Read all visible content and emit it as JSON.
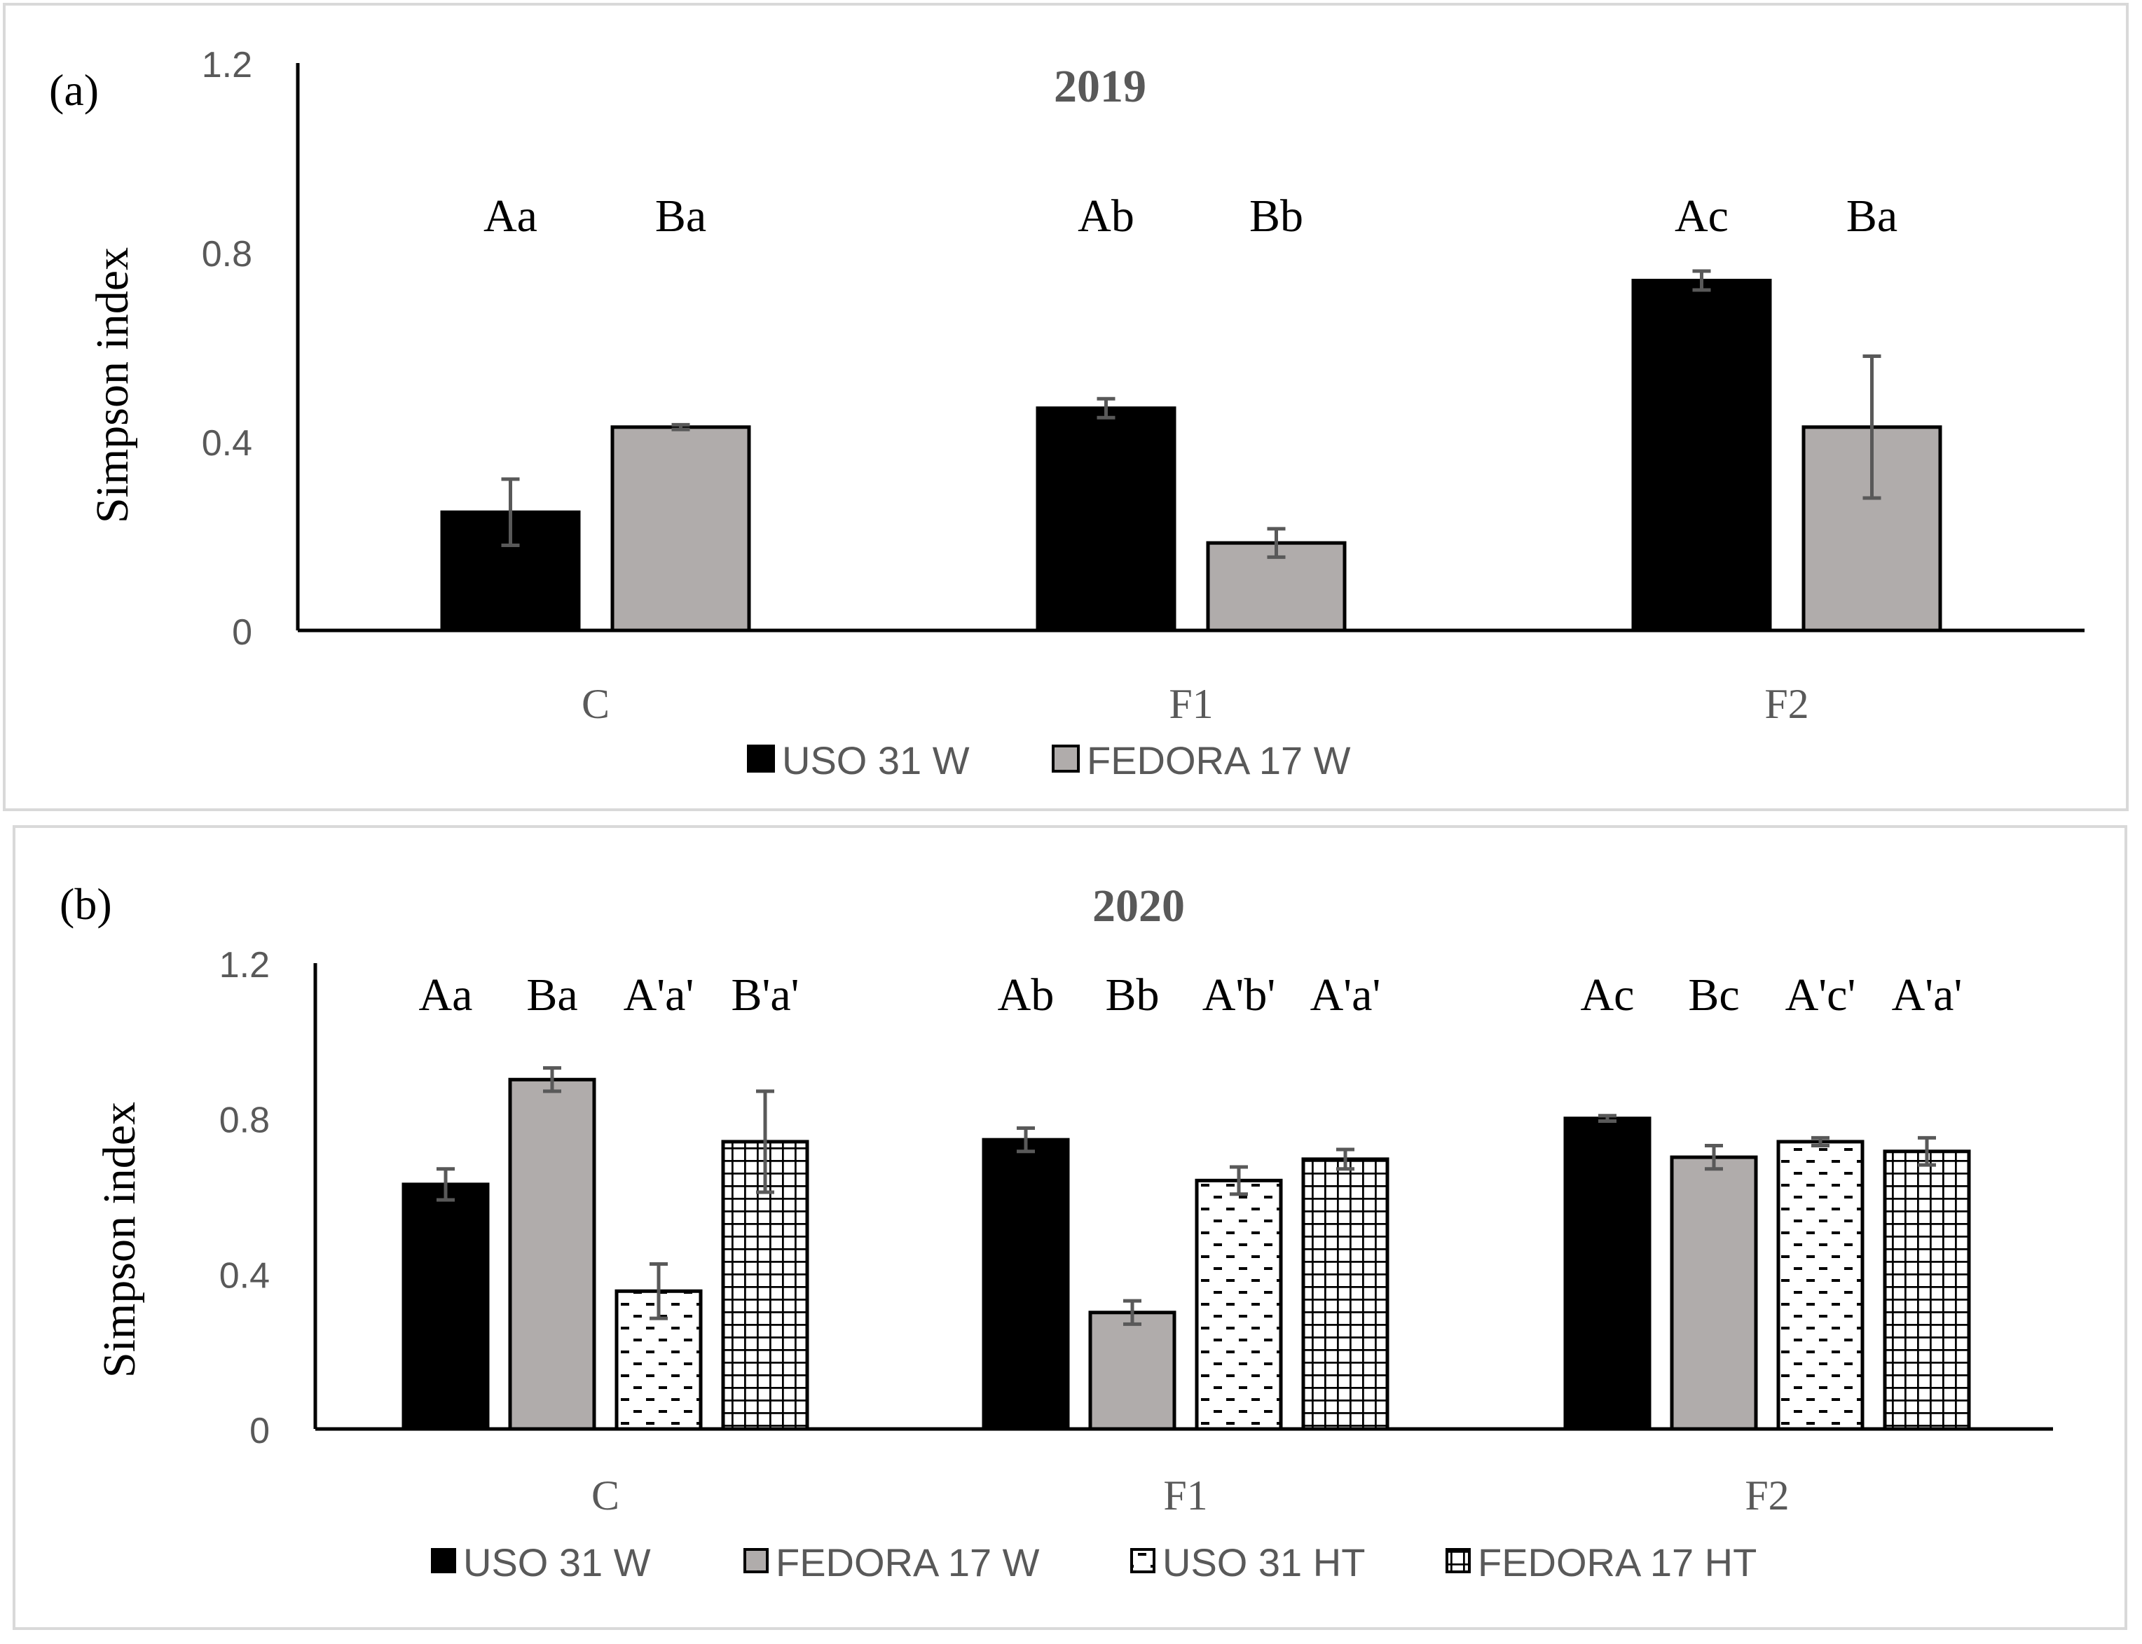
{
  "chart_data": [
    {
      "panel_label": "(a)",
      "type": "bar",
      "title": "2019",
      "xlabel": "",
      "ylabel": "Simpson index",
      "ylim": [
        0,
        1.2
      ],
      "yticks": [
        0,
        0.4,
        0.8,
        1.2
      ],
      "ytick_labels": [
        "0",
        "0.4",
        "0.8",
        "1.2"
      ],
      "categories": [
        "C",
        "F1",
        "F2"
      ],
      "series": [
        {
          "name": "USO 31 W",
          "pattern": "solid-black",
          "values": [
            0.25,
            0.47,
            0.74
          ],
          "errors": [
            0.07,
            0.02,
            0.02
          ]
        },
        {
          "name": "FEDORA 17 W",
          "pattern": "solid-gray",
          "values": [
            0.43,
            0.185,
            0.43
          ],
          "errors": [
            0.005,
            0.03,
            0.15
          ]
        }
      ],
      "annotations": [
        [
          "Aa",
          "Ba"
        ],
        [
          "Ab",
          "Bb"
        ],
        [
          "Ac",
          "Ba"
        ]
      ],
      "legend_placement": "bottom-center",
      "grid": false
    },
    {
      "panel_label": "(b)",
      "type": "bar",
      "title": "2020",
      "xlabel": "",
      "ylabel": "Simpson index",
      "ylim": [
        0,
        1.2
      ],
      "yticks": [
        0,
        0.4,
        0.8,
        1.2
      ],
      "ytick_labels": [
        "0",
        "0.4",
        "0.8",
        "1.2"
      ],
      "categories": [
        "C",
        "F1",
        "F2"
      ],
      "series": [
        {
          "name": "USO 31 W",
          "pattern": "solid-black",
          "values": [
            0.63,
            0.745,
            0.8
          ],
          "errors": [
            0.04,
            0.03,
            0.007
          ]
        },
        {
          "name": "FEDORA 17 W",
          "pattern": "solid-gray",
          "values": [
            0.9,
            0.3,
            0.7
          ],
          "errors": [
            0.03,
            0.03,
            0.03
          ]
        },
        {
          "name": "USO 31 HT",
          "pattern": "dashes",
          "values": [
            0.355,
            0.64,
            0.74
          ],
          "errors": [
            0.07,
            0.035,
            0.01
          ]
        },
        {
          "name": "FEDORA 17 HT",
          "pattern": "grid",
          "values": [
            0.74,
            0.695,
            0.715
          ],
          "errors": [
            0.13,
            0.025,
            0.035
          ]
        }
      ],
      "annotations": [
        [
          "Aa",
          "Ba",
          "A'a'",
          "B'a'"
        ],
        [
          "Ab",
          "Bb",
          "A'b'",
          "A'a'"
        ],
        [
          "Ac",
          "Bc",
          "A'c'",
          "A'a'"
        ]
      ],
      "legend_placement": "bottom-center",
      "grid": false
    }
  ],
  "colors": {
    "black_bar": "#000000",
    "gray_bar": "#b0acab",
    "hatch_bar_bg": "#ffffff",
    "axis": "#000000",
    "tick_label": "#595959",
    "title": "#595959",
    "errorbar": "#595959",
    "panel_border": "#d9d9d9"
  }
}
